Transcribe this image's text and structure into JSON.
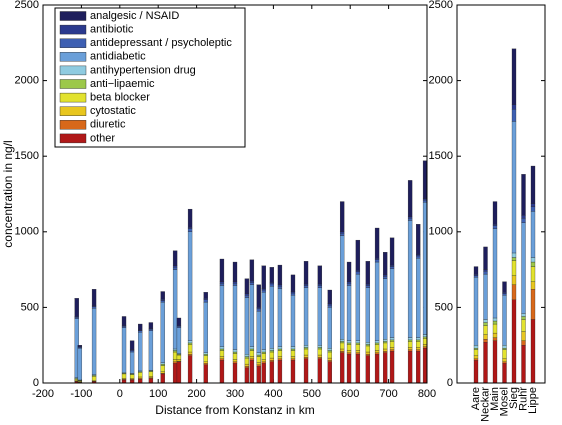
{
  "chart_data": [
    {
      "type": "bar",
      "xlabel": "Distance from Konstanz in km",
      "ylabel": "concentration in ng/l",
      "x": [
        -112,
        -104,
        -67,
        11,
        32,
        53,
        81,
        112,
        144,
        154,
        183,
        224,
        266,
        300,
        331,
        344,
        362,
        375,
        396,
        417,
        451,
        485,
        521,
        547,
        579,
        597,
        620,
        646,
        670,
        691,
        709,
        756,
        777,
        795
      ],
      "xlim": [
        -200,
        800
      ],
      "xticks": [
        -200,
        -100,
        0,
        100,
        200,
        300,
        400,
        500,
        600,
        700,
        800
      ],
      "ylim": [
        0,
        2500
      ],
      "yticks": [
        0,
        500,
        1000,
        1500,
        2000,
        2500
      ],
      "legend": "upper left",
      "series": [
        {
          "name": "analgesic / NSAID",
          "color": "#1e1e5c",
          "values": [
            120,
            10,
            110,
            60,
            60,
            40,
            40,
            50,
            100,
            50,
            120,
            40,
            150,
            130,
            100,
            140,
            150,
            150,
            100,
            130,
            110,
            150,
            120,
            90,
            200,
            130,
            200,
            150,
            200,
            150,
            180,
            240,
            200,
            250
          ]
        },
        {
          "name": "antibiotic",
          "color": "#2b3a8e",
          "values": [
            5,
            5,
            5,
            5,
            5,
            5,
            5,
            10,
            10,
            5,
            10,
            10,
            10,
            10,
            10,
            10,
            10,
            10,
            10,
            10,
            10,
            10,
            10,
            10,
            10,
            10,
            10,
            10,
            10,
            10,
            10,
            10,
            10,
            10
          ]
        },
        {
          "name": "antidepressant / psycholeptic",
          "color": "#3d5fb2",
          "values": [
            10,
            5,
            10,
            10,
            10,
            10,
            10,
            10,
            15,
            10,
            20,
            15,
            15,
            15,
            15,
            15,
            15,
            15,
            15,
            15,
            15,
            15,
            15,
            15,
            15,
            15,
            15,
            15,
            15,
            15,
            15,
            15,
            15,
            15
          ]
        },
        {
          "name": "antidiabetic",
          "color": "#6a9fd9",
          "values": [
            390,
            210,
            440,
            295,
            140,
            255,
            260,
            400,
            525,
            170,
            720,
            335,
            405,
            425,
            375,
            410,
            275,
            380,
            410,
            385,
            340,
            380,
            380,
            270,
            685,
            365,
            440,
            360,
            520,
            400,
            455,
            775,
            525,
            875
          ]
        },
        {
          "name": "antihypertension drug",
          "color": "#8fcbe0",
          "values": [
            5,
            3,
            5,
            5,
            5,
            5,
            5,
            10,
            10,
            5,
            15,
            10,
            15,
            15,
            15,
            15,
            15,
            15,
            15,
            15,
            15,
            15,
            15,
            15,
            15,
            15,
            15,
            15,
            15,
            15,
            15,
            15,
            15,
            15
          ]
        },
        {
          "name": "anti−lipaemic",
          "color": "#9cc84a",
          "values": [
            5,
            2,
            5,
            5,
            5,
            5,
            5,
            10,
            10,
            5,
            10,
            10,
            10,
            10,
            10,
            10,
            10,
            10,
            10,
            10,
            10,
            10,
            10,
            10,
            10,
            10,
            10,
            10,
            10,
            10,
            10,
            10,
            10,
            10
          ]
        },
        {
          "name": "beta blocker",
          "color": "#e2e22e",
          "values": [
            10,
            5,
            30,
            30,
            25,
            30,
            30,
            40,
            50,
            30,
            50,
            40,
            40,
            40,
            40,
            40,
            40,
            40,
            40,
            40,
            40,
            40,
            40,
            40,
            40,
            40,
            40,
            40,
            40,
            40,
            40,
            40,
            40,
            40
          ]
        },
        {
          "name": "cytostatic",
          "color": "#e8c61e",
          "values": [
            3,
            3,
            3,
            5,
            5,
            10,
            10,
            10,
            15,
            10,
            15,
            10,
            15,
            15,
            15,
            15,
            15,
            15,
            15,
            15,
            15,
            15,
            15,
            15,
            15,
            15,
            15,
            15,
            15,
            15,
            15,
            15,
            15,
            15
          ]
        },
        {
          "name": "diuretic",
          "color": "#d8681a",
          "values": [
            2,
            2,
            2,
            5,
            5,
            5,
            5,
            5,
            10,
            5,
            10,
            10,
            10,
            10,
            10,
            10,
            10,
            10,
            10,
            10,
            10,
            10,
            10,
            10,
            10,
            10,
            10,
            10,
            10,
            10,
            10,
            10,
            10,
            10
          ]
        },
        {
          "name": "other",
          "color": "#b01818",
          "values": [
            10,
            5,
            10,
            20,
            20,
            25,
            30,
            60,
            130,
            140,
            180,
            120,
            150,
            130,
            100,
            150,
            110,
            130,
            140,
            150,
            150,
            160,
            160,
            140,
            200,
            190,
            190,
            180,
            190,
            200,
            210,
            210,
            210,
            230
          ]
        }
      ]
    },
    {
      "type": "bar",
      "categories": [
        "Aare",
        "Neckar",
        "Main",
        "Mosel",
        "Sieg",
        "Ruhr",
        "Lippe"
      ],
      "ylim": [
        0,
        2500
      ],
      "yticks": [
        0,
        500,
        1000,
        1500,
        2000,
        2500
      ],
      "series": [
        {
          "values": [
            50,
            150,
            150,
            70,
            370,
            270,
            250
          ]
        },
        {
          "values": [
            10,
            10,
            10,
            10,
            30,
            20,
            20
          ]
        },
        {
          "values": [
            10,
            20,
            20,
            10,
            80,
            30,
            30
          ]
        },
        {
          "values": [
            450,
            300,
            590,
            330,
            870,
            600,
            305
          ]
        },
        {
          "values": [
            20,
            20,
            20,
            20,
            30,
            20,
            30
          ]
        },
        {
          "values": [
            10,
            20,
            20,
            10,
            20,
            20,
            30
          ]
        },
        {
          "values": [
            40,
            60,
            60,
            60,
            100,
            80,
            100
          ]
        },
        {
          "values": [
            20,
            30,
            30,
            20,
            60,
            60,
            50
          ]
        },
        {
          "values": [
            10,
            20,
            20,
            10,
            100,
            30,
            200
          ]
        },
        {
          "values": [
            150,
            270,
            280,
            130,
            550,
            250,
            420
          ]
        }
      ]
    }
  ]
}
